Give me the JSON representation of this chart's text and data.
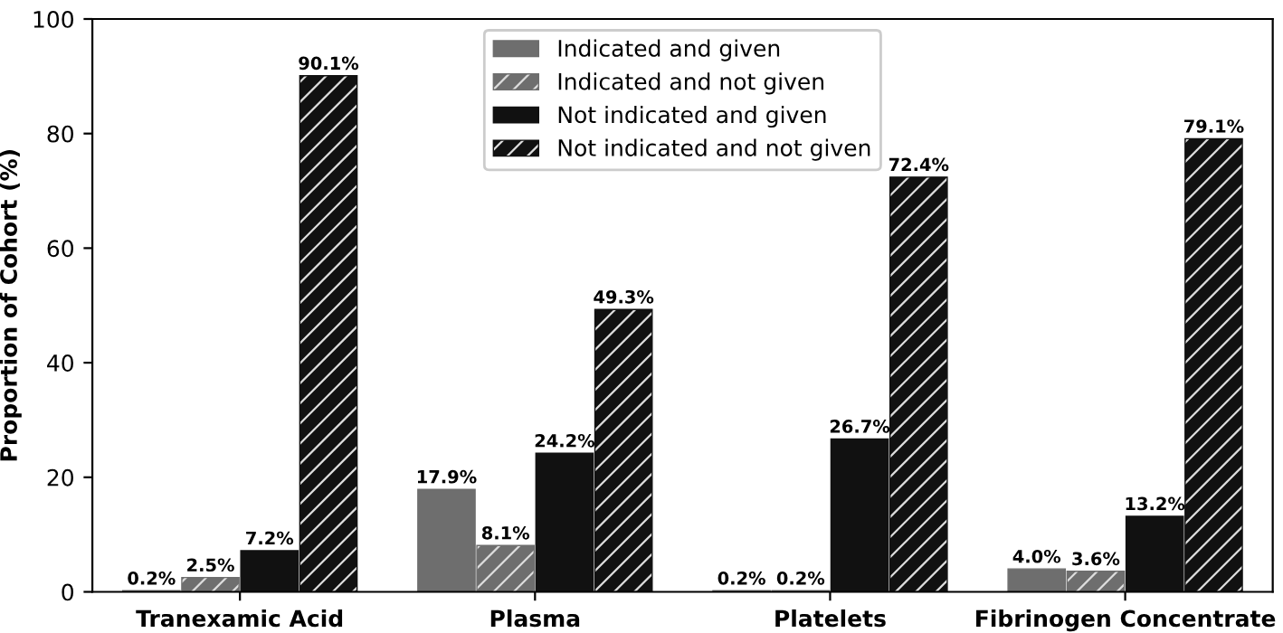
{
  "chart_data": {
    "type": "bar",
    "ylabel": "Proportion of Cohort (%)",
    "categories": [
      "Tranexamic Acid",
      "Plasma",
      "Platelets",
      "Fibrinogen Concentrate"
    ],
    "series": [
      {
        "name": "Indicated and given",
        "color": "#6e6e6e",
        "values": [
          0.2,
          17.9,
          0.2,
          4.0
        ],
        "value_labels": [
          "0.2%",
          "17.9%",
          "0.2%",
          "4.0%"
        ]
      },
      {
        "name": "Indicated and not given",
        "color": "#6e6e6e",
        "values": [
          2.5,
          8.1,
          0.2,
          3.6
        ],
        "value_labels": [
          "2.5%",
          "8.1%",
          "0.2%",
          "3.6%"
        ]
      },
      {
        "name": "Not indicated and given",
        "color": "#111111",
        "values": [
          7.2,
          24.2,
          26.7,
          13.2
        ],
        "value_labels": [
          "7.2%",
          "24.2%",
          "26.7%",
          "13.2%"
        ]
      },
      {
        "name": "Not indicated and not given",
        "color": "#111111",
        "values": [
          90.1,
          49.3,
          72.4,
          79.1
        ],
        "value_labels": [
          "90.1%",
          "49.3%",
          "72.4%",
          "79.1%"
        ]
      }
    ],
    "ylim": [
      0,
      100
    ],
    "yticks": [
      0,
      20,
      40,
      60,
      80,
      100
    ],
    "legend": "top center",
    "grid": false
  }
}
